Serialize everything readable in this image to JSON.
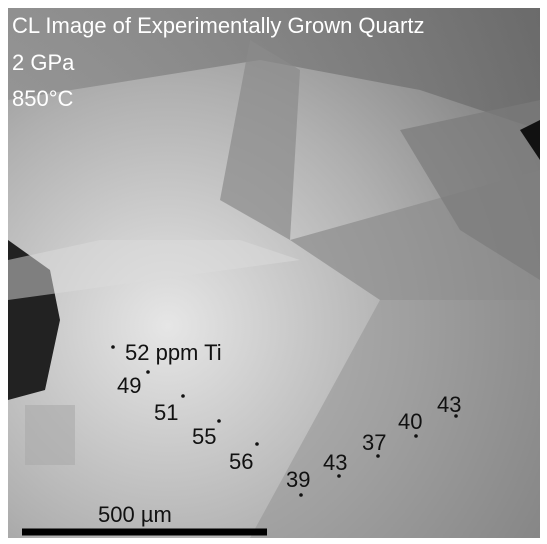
{
  "title": [
    "CL Image of Experimentally Grown Quartz",
    "2 GPa",
    "850°C"
  ],
  "points": [
    "52 ppm Ti",
    49,
    51,
    55,
    56,
    39,
    43,
    37,
    40,
    43
  ],
  "scale_bar": "500 µm"
}
